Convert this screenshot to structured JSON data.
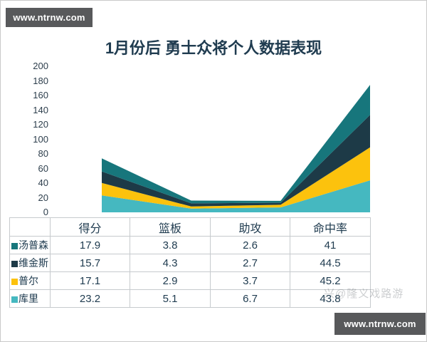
{
  "watermarks": {
    "top_left": "www.ntrnw.com",
    "bottom_right": "www.ntrnw.com",
    "overlay_faint": "兴@隆义戏路游"
  },
  "chart_data": {
    "type": "area",
    "stacked": true,
    "stack_order": "first-series-is-bottom",
    "title": "1月份后 勇士众将个人数据表现",
    "categories": [
      "得分",
      "篮板",
      "助攻",
      "命中率"
    ],
    "series": [
      {
        "name": "库里",
        "color": "#45b8c0",
        "values": [
          23.2,
          5.1,
          6.7,
          43.8
        ]
      },
      {
        "name": "普尔",
        "color": "#fcc20d",
        "values": [
          17.1,
          2.9,
          3.7,
          45.2
        ]
      },
      {
        "name": "维金斯",
        "color": "#1d3a47",
        "values": [
          15.7,
          4.3,
          2.7,
          44.5
        ]
      },
      {
        "name": "汤普森",
        "color": "#17767c",
        "values": [
          17.9,
          3.8,
          2.6,
          41
        ]
      }
    ],
    "xlabel": "",
    "ylabel": "",
    "ylim": [
      0,
      200
    ],
    "ytick_step": 20,
    "grid": false,
    "legend_position": "table-rows-below-chart"
  },
  "table": {
    "headers": [
      "",
      "得分",
      "篮板",
      "助攻",
      "命中率"
    ],
    "rows": [
      {
        "name": "汤普森",
        "color": "#17767c",
        "values": [
          "17.9",
          "3.8",
          "2.6",
          "41"
        ]
      },
      {
        "name": "维金斯",
        "color": "#1d3a47",
        "values": [
          "15.7",
          "4.3",
          "2.7",
          "44.5"
        ]
      },
      {
        "name": "普尔",
        "color": "#fcc20d",
        "values": [
          "17.1",
          "2.9",
          "3.7",
          "45.2"
        ]
      },
      {
        "name": "库里",
        "color": "#45b8c0",
        "values": [
          "23.2",
          "5.1",
          "6.7",
          "43.8"
        ]
      }
    ]
  },
  "colors": {
    "title_text": "#203c50",
    "axis_text": "#2d3e4c",
    "table_border": "#c6cacd",
    "watermark_bg": "#58595b",
    "watermark_text": "#ffffff",
    "page_border": "#c9c9c9"
  }
}
